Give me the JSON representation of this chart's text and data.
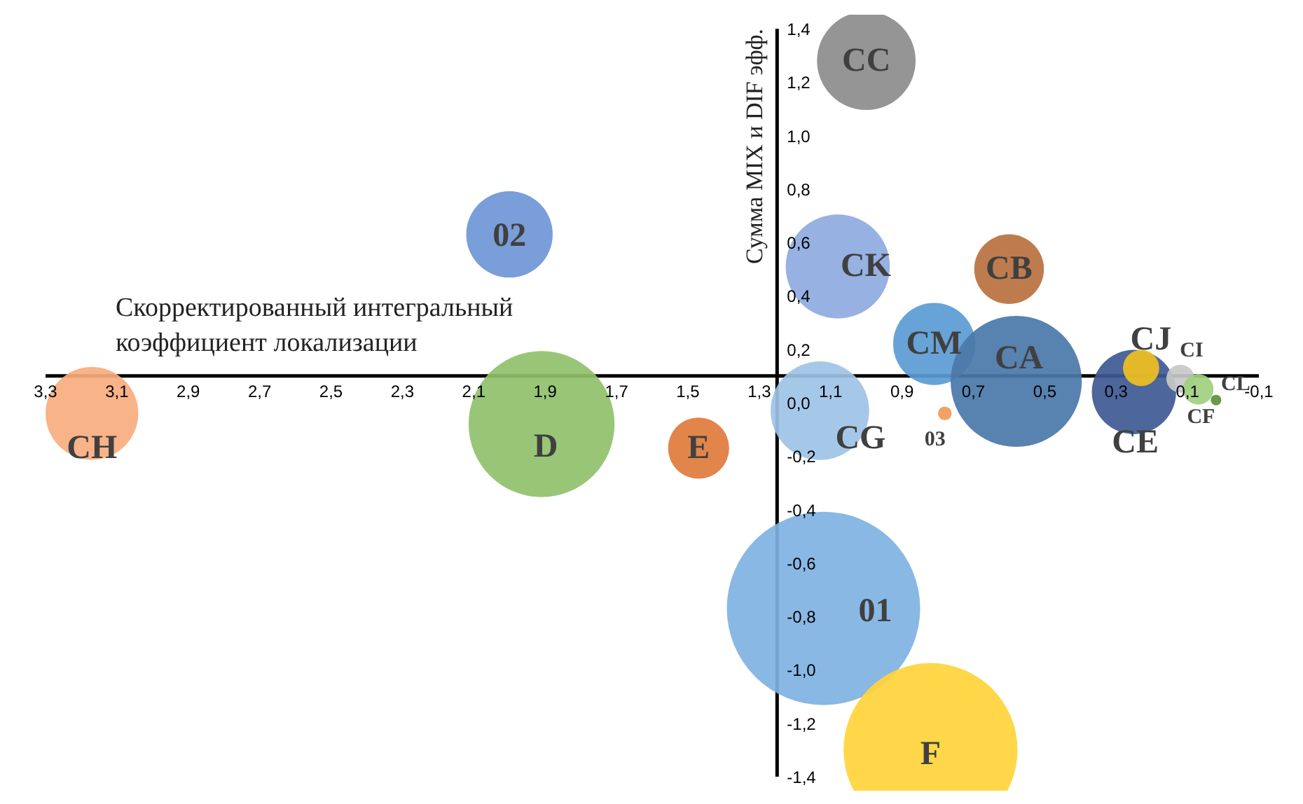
{
  "chart_data": {
    "type": "bubble",
    "xlabel": "Скорректированный интегральный коэффициент локализации",
    "ylabel": "Сумма MIX и DIF эфф.",
    "xlim": [
      3.3,
      -0.1
    ],
    "ylim": [
      -1.4,
      1.4
    ],
    "xticks": [
      {
        "value": 3.3,
        "label": "3,3"
      },
      {
        "value": 3.1,
        "label": "3,1"
      },
      {
        "value": 2.9,
        "label": "2,9"
      },
      {
        "value": 2.7,
        "label": "2,7"
      },
      {
        "value": 2.5,
        "label": "2,5"
      },
      {
        "value": 2.3,
        "label": "2,3"
      },
      {
        "value": 2.1,
        "label": "2,1"
      },
      {
        "value": 1.9,
        "label": "1,9"
      },
      {
        "value": 1.7,
        "label": "1,7"
      },
      {
        "value": 1.5,
        "label": "1,5"
      },
      {
        "value": 1.3,
        "label": "1,3"
      },
      {
        "value": 1.1,
        "label": "1,1"
      },
      {
        "value": 0.9,
        "label": "0,9"
      },
      {
        "value": 0.7,
        "label": "0,7"
      },
      {
        "value": 0.5,
        "label": "0,5"
      },
      {
        "value": 0.3,
        "label": "0,3"
      },
      {
        "value": 0.1,
        "label": "0,1"
      },
      {
        "value": -0.1,
        "label": "-0,1"
      }
    ],
    "yticks": [
      {
        "value": -1.4,
        "label": "-1,4"
      },
      {
        "value": -1.2,
        "label": "-1,2"
      },
      {
        "value": -1.0,
        "label": "-1,0"
      },
      {
        "value": -0.8,
        "label": "-0,8"
      },
      {
        "value": -0.6,
        "label": "-0,6"
      },
      {
        "value": -0.4,
        "label": "-0,4"
      },
      {
        "value": -0.2,
        "label": "-0,2"
      },
      {
        "value": 0.0,
        "label": "0,0"
      },
      {
        "value": 0.2,
        "label": "0,2"
      },
      {
        "value": 0.4,
        "label": "0,4"
      },
      {
        "value": 0.6,
        "label": "0,6"
      },
      {
        "value": 0.8,
        "label": "0,8"
      },
      {
        "value": 1.0,
        "label": "1,0"
      },
      {
        "value": 1.2,
        "label": "1,2"
      },
      {
        "value": 1.4,
        "label": "1,4"
      }
    ],
    "series": [
      {
        "name": "CC",
        "color": "#8c8c8c",
        "x": [
          1.0
        ],
        "values": [
          1.28
        ],
        "sizes": [
          0.26
        ]
      },
      {
        "name": "02",
        "color": "#6f96d6",
        "x": [
          2.0
        ],
        "values": [
          0.63
        ],
        "sizes": [
          0.2
        ]
      },
      {
        "name": "CK",
        "color": "#8eaadf",
        "x": [
          1.08
        ],
        "values": [
          0.51
        ],
        "sizes": [
          0.29
        ]
      },
      {
        "name": "CB",
        "color": "#b9713f",
        "x": [
          0.6
        ],
        "values": [
          0.5
        ],
        "sizes": [
          0.13
        ]
      },
      {
        "name": "CM",
        "color": "#5b9bd5",
        "x": [
          0.81
        ],
        "values": [
          0.22
        ],
        "sizes": [
          0.18
        ]
      },
      {
        "name": "CA",
        "color": "#4a77a8",
        "x": [
          0.58
        ],
        "values": [
          0.08
        ],
        "sizes": [
          0.46
        ]
      },
      {
        "name": "CE",
        "color": "#3e5a94",
        "x": [
          0.25
        ],
        "values": [
          0.04
        ],
        "sizes": [
          0.19
        ]
      },
      {
        "name": "CJ",
        "color": "#f0c020",
        "x": [
          0.23
        ],
        "values": [
          0.13
        ],
        "sizes": [
          0.035
        ]
      },
      {
        "name": "CI",
        "color": "#c8c8c8",
        "x": [
          0.12
        ],
        "values": [
          0.09
        ],
        "sizes": [
          0.021
        ]
      },
      {
        "name": "CF",
        "color": "#9fd07f",
        "x": [
          0.07
        ],
        "values": [
          0.05
        ],
        "sizes": [
          0.025
        ]
      },
      {
        "name": "CL",
        "color": "#5e8f3e",
        "x": [
          0.02
        ],
        "values": [
          0.01
        ],
        "sizes": [
          0.003
        ]
      },
      {
        "name": "CG",
        "color": "#9dc3e6",
        "x": [
          1.13
        ],
        "values": [
          -0.03
        ],
        "sizes": [
          0.26
        ]
      },
      {
        "name": "03",
        "color": "#f29a5a",
        "x": [
          0.78
        ],
        "values": [
          -0.04
        ],
        "sizes": [
          0.005
        ]
      },
      {
        "name": "CH",
        "color": "#f8ad7f",
        "x": [
          3.17
        ],
        "values": [
          -0.04
        ],
        "sizes": [
          0.23
        ]
      },
      {
        "name": "D",
        "color": "#8fc16a",
        "x": [
          1.91
        ],
        "values": [
          -0.08
        ],
        "sizes": [
          0.57
        ]
      },
      {
        "name": "E",
        "color": "#e07b3c",
        "x": [
          1.47
        ],
        "values": [
          -0.17
        ],
        "sizes": [
          0.1
        ]
      },
      {
        "name": "01",
        "color": "#7fb2e3",
        "x": [
          1.12
        ],
        "values": [
          -0.77
        ],
        "sizes": [
          1.0
        ]
      },
      {
        "name": "F",
        "color": "#ffd43a",
        "x": [
          0.82
        ],
        "values": [
          -1.3
        ],
        "sizes": [
          0.81
        ]
      }
    ]
  }
}
